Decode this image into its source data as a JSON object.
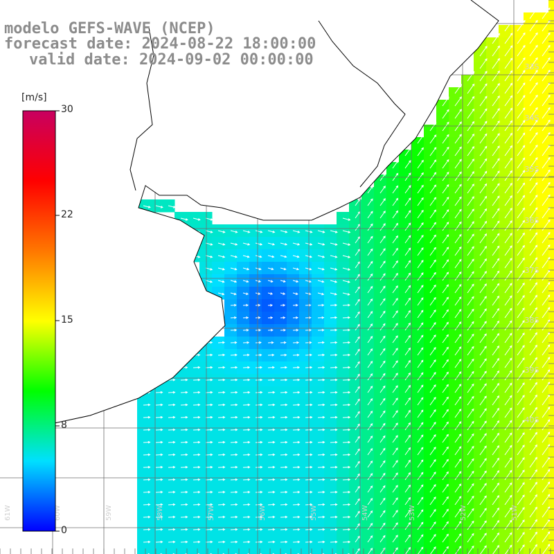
{
  "title": {
    "line1": "modelo GEFS-WAVE (NCEP)",
    "line2": "forecast date: 2024-08-22 18:00:00",
    "line3": "valid date: 2024-09-02 00:00:00"
  },
  "colorbar": {
    "unit": "[m/s]",
    "min": 0,
    "max": 30,
    "ticks": [
      "30",
      "22",
      "15",
      "8",
      "0"
    ],
    "colors": [
      "#0000ff",
      "#00e0ff",
      "#00ff00",
      "#ffff00",
      "#ff7700",
      "#ff0000",
      "#c80060"
    ]
  },
  "latitude_labels": [
    "33S",
    "34S",
    "35S",
    "36S",
    "37S",
    "38S",
    "39S",
    "40S"
  ],
  "longitude_labels": [
    "61W",
    "60W",
    "59W",
    "58W",
    "57W",
    "56W",
    "55W",
    "54W",
    "53W",
    "52W",
    "51W"
  ],
  "colors": {
    "title": "#8c8c8c",
    "grid": "#6e6e6e",
    "coastline": "#000000",
    "land": "#ffffff",
    "vectors": "#ffffff"
  }
}
